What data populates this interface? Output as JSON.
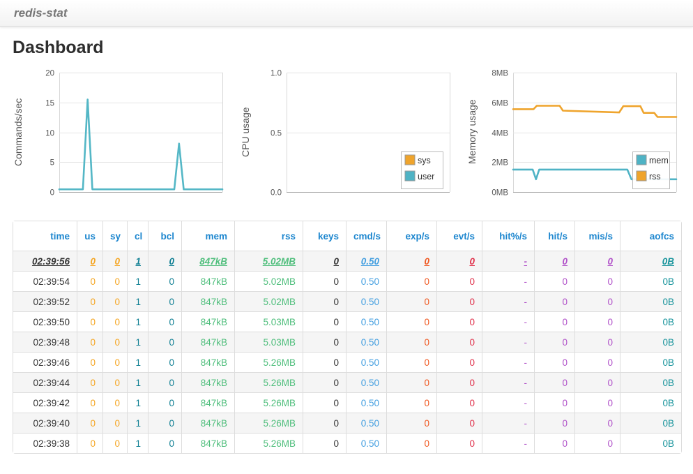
{
  "navbar": {
    "brand": "redis-stat"
  },
  "page": {
    "title": "Dashboard"
  },
  "chart_data": [
    {
      "type": "line",
      "ylabel": "Commands/sec",
      "ylim": [
        0,
        20
      ],
      "grid": true,
      "yticks": [
        {
          "v": 0,
          "label": "0"
        },
        {
          "v": 5,
          "label": "5"
        },
        {
          "v": 10,
          "label": "10"
        },
        {
          "v": 15,
          "label": "15"
        },
        {
          "v": 20,
          "label": "20"
        }
      ],
      "legend": null,
      "series": [
        {
          "name": "commands",
          "color": "#54B7C6",
          "points": [
            [
              0,
              0.45
            ],
            [
              14.5,
              0.45
            ],
            [
              17.4,
              15.5
            ],
            [
              20.3,
              0.45
            ],
            [
              70.5,
              0.45
            ],
            [
              73.4,
              8.1
            ],
            [
              76.3,
              0.45
            ],
            [
              100,
              0.45
            ]
          ]
        }
      ]
    },
    {
      "type": "line",
      "ylabel": "CPU usage",
      "ylim": [
        0,
        1
      ],
      "grid": true,
      "yticks": [
        {
          "v": 0,
          "label": "0.0"
        },
        {
          "v": 0.5,
          "label": "0.5"
        },
        {
          "v": 1,
          "label": "1.0"
        }
      ],
      "legend": {
        "position": "bottom-right",
        "entries": [
          {
            "label": "sys",
            "color": "#EFA42C"
          },
          {
            "label": "user",
            "color": "#4FB3C5"
          }
        ]
      },
      "series": []
    },
    {
      "type": "line",
      "ylabel": "Memory usage",
      "ylim": [
        0,
        8
      ],
      "grid": true,
      "yticks": [
        {
          "v": 0,
          "label": "0MB"
        },
        {
          "v": 2,
          "label": "2MB"
        },
        {
          "v": 4,
          "label": "4MB"
        },
        {
          "v": 6,
          "label": "6MB"
        },
        {
          "v": 8,
          "label": "8MB"
        }
      ],
      "legend": {
        "position": "bottom-right",
        "entries": [
          {
            "label": "mem",
            "color": "#4FB3C5"
          },
          {
            "label": "rss",
            "color": "#EFA42C"
          }
        ]
      },
      "series": [
        {
          "name": "mem",
          "color": "#4FB3C5",
          "points": [
            [
              0,
              1.5
            ],
            [
              12,
              1.5
            ],
            [
              14,
              0.85
            ],
            [
              16,
              1.5
            ],
            [
              70,
              1.5
            ],
            [
              72.5,
              0.85
            ],
            [
              100,
              0.85
            ]
          ]
        },
        {
          "name": "rss",
          "color": "#EFA42C",
          "points": [
            [
              0,
              5.55
            ],
            [
              12.5,
              5.55
            ],
            [
              14.5,
              5.78
            ],
            [
              28.5,
              5.78
            ],
            [
              30.5,
              5.45
            ],
            [
              65,
              5.33
            ],
            [
              67.5,
              5.75
            ],
            [
              78,
              5.75
            ],
            [
              80,
              5.3
            ],
            [
              86.5,
              5.3
            ],
            [
              88.5,
              5.03
            ],
            [
              100,
              5.03
            ]
          ]
        }
      ]
    }
  ],
  "table": {
    "header_color": "#1E87CF",
    "stripe_color": "#f5f5f5",
    "columns": [
      {
        "key": "time",
        "label": "time",
        "color": "#333333"
      },
      {
        "key": "us",
        "label": "us",
        "color": "#F5A623"
      },
      {
        "key": "sy",
        "label": "sy",
        "color": "#F5A623"
      },
      {
        "key": "cl",
        "label": "cl",
        "color": "#0F7F93"
      },
      {
        "key": "bcl",
        "label": "bcl",
        "color": "#0F7F93"
      },
      {
        "key": "mem",
        "label": "mem",
        "color": "#4FBE7C"
      },
      {
        "key": "rss",
        "label": "rss",
        "color": "#4FBE7C"
      },
      {
        "key": "keys",
        "label": "keys",
        "color": "#333333"
      },
      {
        "key": "cmd_s",
        "label": "cmd/s",
        "color": "#449FE0"
      },
      {
        "key": "exp_s",
        "label": "exp/s",
        "color": "#F05A23"
      },
      {
        "key": "evt_s",
        "label": "evt/s",
        "color": "#E0314B"
      },
      {
        "key": "hitpct_s",
        "label": "hit%/s",
        "color": "#B152C9"
      },
      {
        "key": "hit_s",
        "label": "hit/s",
        "color": "#B152C9"
      },
      {
        "key": "mis_s",
        "label": "mis/s",
        "color": "#B152C9"
      },
      {
        "key": "aofcs",
        "label": "aofcs",
        "color": "#16939B"
      }
    ],
    "rows": [
      [
        "02:39:56",
        "0",
        "0",
        "1",
        "0",
        "847kB",
        "5.02MB",
        "0",
        "0.50",
        "0",
        "0",
        "-",
        "0",
        "0",
        "0B"
      ],
      [
        "02:39:54",
        "0",
        "0",
        "1",
        "0",
        "847kB",
        "5.02MB",
        "0",
        "0.50",
        "0",
        "0",
        "-",
        "0",
        "0",
        "0B"
      ],
      [
        "02:39:52",
        "0",
        "0",
        "1",
        "0",
        "847kB",
        "5.02MB",
        "0",
        "0.50",
        "0",
        "0",
        "-",
        "0",
        "0",
        "0B"
      ],
      [
        "02:39:50",
        "0",
        "0",
        "1",
        "0",
        "847kB",
        "5.03MB",
        "0",
        "0.50",
        "0",
        "0",
        "-",
        "0",
        "0",
        "0B"
      ],
      [
        "02:39:48",
        "0",
        "0",
        "1",
        "0",
        "847kB",
        "5.03MB",
        "0",
        "0.50",
        "0",
        "0",
        "-",
        "0",
        "0",
        "0B"
      ],
      [
        "02:39:46",
        "0",
        "0",
        "1",
        "0",
        "847kB",
        "5.26MB",
        "0",
        "0.50",
        "0",
        "0",
        "-",
        "0",
        "0",
        "0B"
      ],
      [
        "02:39:44",
        "0",
        "0",
        "1",
        "0",
        "847kB",
        "5.26MB",
        "0",
        "0.50",
        "0",
        "0",
        "-",
        "0",
        "0",
        "0B"
      ],
      [
        "02:39:42",
        "0",
        "0",
        "1",
        "0",
        "847kB",
        "5.26MB",
        "0",
        "0.50",
        "0",
        "0",
        "-",
        "0",
        "0",
        "0B"
      ],
      [
        "02:39:40",
        "0",
        "0",
        "1",
        "0",
        "847kB",
        "5.26MB",
        "0",
        "0.50",
        "0",
        "0",
        "-",
        "0",
        "0",
        "0B"
      ],
      [
        "02:39:38",
        "0",
        "0",
        "1",
        "0",
        "847kB",
        "5.26MB",
        "0",
        "0.50",
        "0",
        "0",
        "-",
        "0",
        "0",
        "0B"
      ]
    ]
  }
}
